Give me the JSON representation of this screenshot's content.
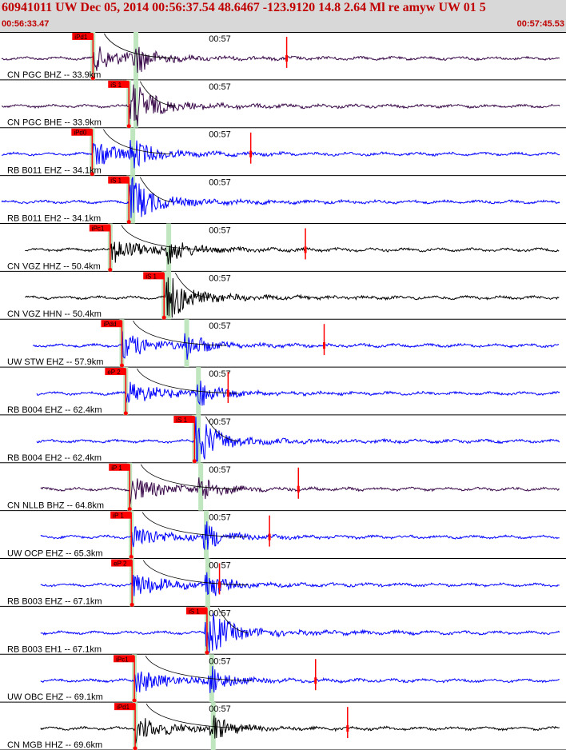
{
  "header": {
    "title": "60941011 UW Dec 05, 2014 00:56:37.54   48.6467 -123.9120 14.8 2.64 Ml re amyw UW 01   5",
    "time_start": "00:56:33.47",
    "time_end": "00:57:45.53"
  },
  "colors": {
    "pick": "#ff0000",
    "highlight": "#bfe6bf",
    "header_bg": "#d8d8d8",
    "trace_blue": "#0000ff",
    "trace_black": "#000000",
    "trace_purple": "#3a0a4a"
  },
  "time_axis": {
    "start_s": 0,
    "end_s": 72.06,
    "tick_label": "00:57",
    "tick_s": 26.53
  },
  "traces": [
    {
      "label": "CN PGC BHZ -- 33.9km",
      "color": "trace_purple",
      "pick": "iPd1",
      "pick_s": 11.7,
      "s_mark_s": 17.2,
      "end_mark_s": 36.5,
      "start_s": 0,
      "end_s": 72
    },
    {
      "label": "CN PGC BHE -- 33.9km",
      "color": "trace_purple",
      "pick": "iS 1",
      "pick_s": 16.3,
      "s_mark_s": 17.2,
      "end_mark_s": 0,
      "start_s": 0,
      "end_s": 72
    },
    {
      "label": "RB B011 EHZ -- 34.1km",
      "color": "trace_blue",
      "pick": "iPd0",
      "pick_s": 11.6,
      "s_mark_s": 16.8,
      "end_mark_s": 31.9,
      "start_s": 0,
      "end_s": 72
    },
    {
      "label": "RB B011 EH2 -- 34.1km",
      "color": "trace_blue",
      "pick": "iS 1",
      "pick_s": 16.3,
      "s_mark_s": 16.8,
      "end_mark_s": 0,
      "start_s": 0,
      "end_s": 72
    },
    {
      "label": "CN VGZ HHZ -- 50.4km",
      "color": "trace_black",
      "pick": "iPc1",
      "pick_s": 13.9,
      "s_mark_s": 21.4,
      "end_mark_s": 38.9,
      "start_s": 3,
      "end_s": 75
    },
    {
      "label": "CN VGZ HHN -- 50.4km",
      "color": "trace_black",
      "pick": "iS 1",
      "pick_s": 20.8,
      "s_mark_s": 21.4,
      "end_mark_s": 0,
      "start_s": 3,
      "end_s": 75
    },
    {
      "label": "UW STW EHZ -- 57.9km",
      "color": "trace_blue",
      "pick": "iPdd",
      "pick_s": 15.4,
      "s_mark_s": 23.7,
      "end_mark_s": 41.3,
      "start_s": 4,
      "end_s": 76
    },
    {
      "label": "RB B004 EHZ -- 62.4km",
      "color": "trace_blue",
      "pick": "eP 2",
      "pick_s": 15.9,
      "s_mark_s": 25.2,
      "end_mark_s": 29.0,
      "start_s": 4.5,
      "end_s": 76.5
    },
    {
      "label": "RB B004 EH2 -- 62.4km",
      "color": "trace_blue",
      "pick": "iS 1",
      "pick_s": 24.7,
      "s_mark_s": 25.2,
      "end_mark_s": 0,
      "start_s": 4.5,
      "end_s": 76.5
    },
    {
      "label": "CN NLLB BHZ -- 64.8km",
      "color": "trace_purple",
      "pick": "iP 1",
      "pick_s": 16.4,
      "s_mark_s": 25.5,
      "end_mark_s": 38.0,
      "start_s": 5,
      "end_s": 77
    },
    {
      "label": "UW OCP EHZ -- 65.3km",
      "color": "trace_blue",
      "pick": "iP 1",
      "pick_s": 16.6,
      "s_mark_s": 26.2,
      "end_mark_s": 34.3,
      "start_s": 5,
      "end_s": 77
    },
    {
      "label": "RB B003 EHZ -- 67.1km",
      "color": "trace_blue",
      "pick": "eP 2",
      "pick_s": 16.7,
      "s_mark_s": 26.4,
      "end_mark_s": 27.9,
      "start_s": 5,
      "end_s": 77
    },
    {
      "label": "RB B003 EH1 -- 67.1km",
      "color": "trace_blue",
      "pick": "iS 1",
      "pick_s": 26.3,
      "s_mark_s": 26.4,
      "end_mark_s": 0,
      "start_s": 5,
      "end_s": 77
    },
    {
      "label": "UW OBC EHZ -- 69.1km",
      "color": "trace_blue",
      "pick": "iPc1",
      "pick_s": 17.0,
      "s_mark_s": 26.9,
      "end_mark_s": 40.2,
      "start_s": 5,
      "end_s": 77
    },
    {
      "label": "CN MGB HHZ -- 69.6km",
      "color": "trace_black",
      "pick": "iPd1",
      "pick_s": 17.1,
      "s_mark_s": 27.1,
      "end_mark_s": 44.3,
      "start_s": 5,
      "end_s": 77
    }
  ]
}
